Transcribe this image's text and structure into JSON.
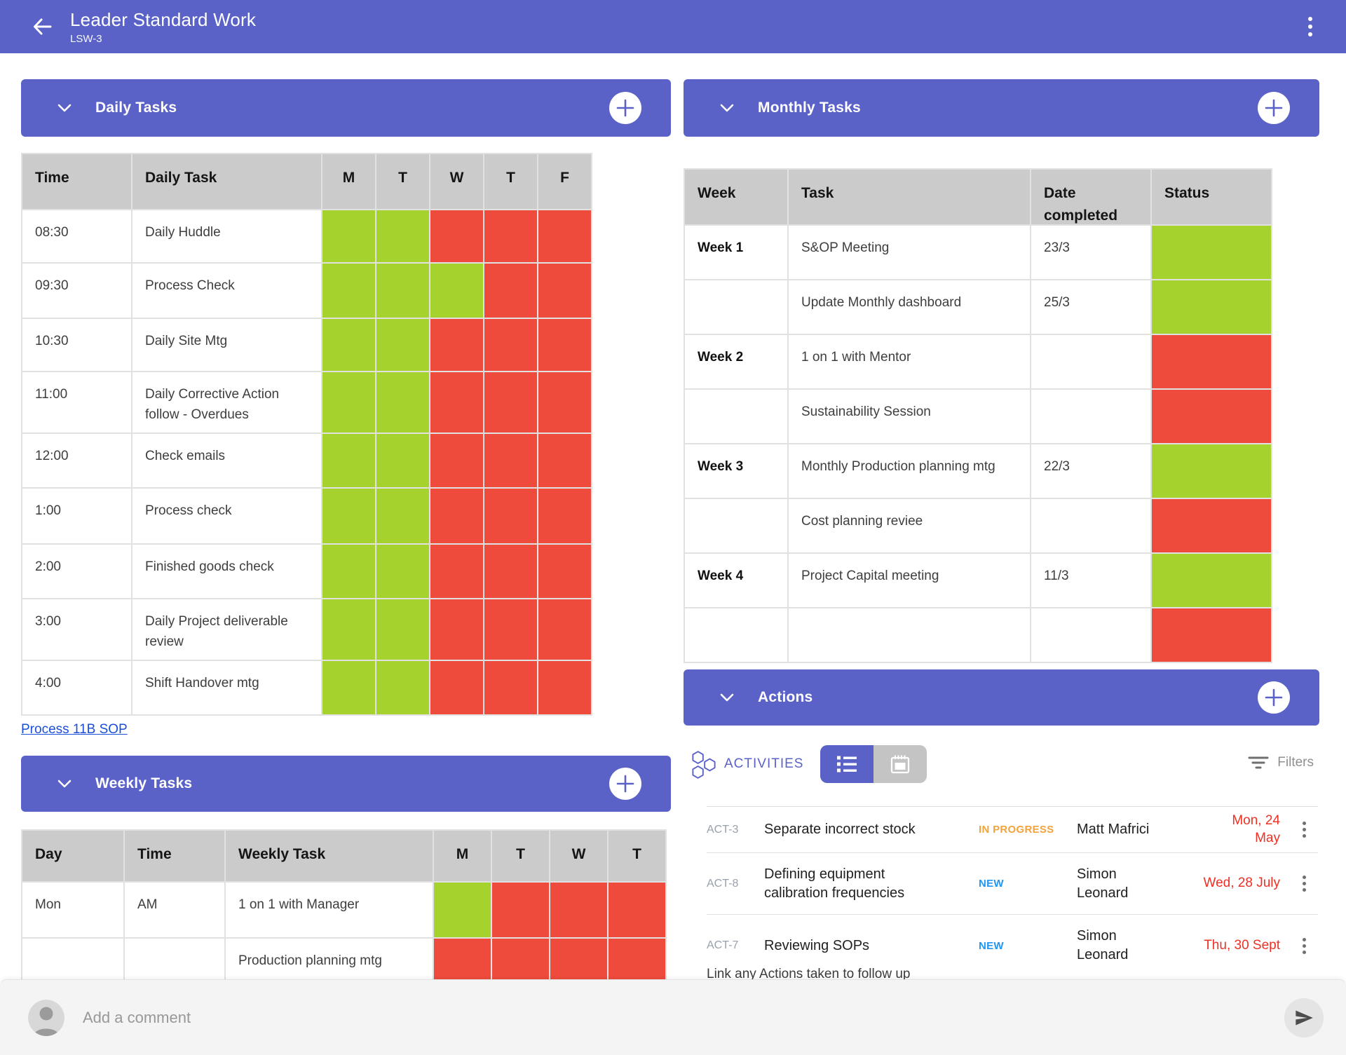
{
  "header": {
    "title": "Leader Standard Work",
    "subtitle": "LSW-3"
  },
  "sections": {
    "daily": "Daily Tasks",
    "weekly": "Weekly Tasks",
    "monthly": "Monthly Tasks",
    "actions": "Actions"
  },
  "colors": {
    "accent": "#5A62C8",
    "cell": {
      "g": "#A5D22D",
      "r": "#EE4B3C"
    },
    "status_in_progress": "#F2A33C",
    "status_new": "#2196F3",
    "due_date": "#ED3124",
    "link": "#1B4FD8"
  },
  "daily_table": {
    "headers": [
      "Time",
      "Daily Task",
      "M",
      "T",
      "W",
      "T",
      "F"
    ],
    "rows": [
      {
        "time": "08:30",
        "task": "Daily Huddle",
        "days": [
          "g",
          "g",
          "r",
          "r",
          "r"
        ]
      },
      {
        "time": "09:30",
        "task": "Process Check",
        "days": [
          "g",
          "g",
          "g",
          "r",
          "r"
        ]
      },
      {
        "time": "10:30",
        "task": "Daily Site Mtg",
        "days": [
          "g",
          "g",
          "r",
          "r",
          "r"
        ]
      },
      {
        "time": "11:00",
        "task": "Daily Corrective Action follow - Overdues",
        "days": [
          "g",
          "g",
          "r",
          "r",
          "r"
        ]
      },
      {
        "time": "12:00",
        "task": "Check emails",
        "days": [
          "g",
          "g",
          "r",
          "r",
          "r"
        ]
      },
      {
        "time": "1:00",
        "task": "Process check",
        "days": [
          "g",
          "g",
          "r",
          "r",
          "r"
        ]
      },
      {
        "time": "2:00",
        "task": "Finished goods check",
        "days": [
          "g",
          "g",
          "r",
          "r",
          "r"
        ]
      },
      {
        "time": "3:00",
        "task": "Daily Project deliverable review",
        "days": [
          "g",
          "g",
          "r",
          "r",
          "r"
        ]
      },
      {
        "time": "4:00",
        "task": "Shift Handover mtg",
        "days": [
          "g",
          "g",
          "r",
          "r",
          "r"
        ]
      }
    ]
  },
  "sop_link": "Process 11B SOP",
  "weekly_table": {
    "headers": [
      "Day",
      "Time",
      "Weekly Task",
      "M",
      "T",
      "W",
      "T"
    ],
    "rows": [
      {
        "day": "Mon",
        "time": "AM",
        "task": "1 on 1 with Manager",
        "days": [
          "g",
          "r",
          "r",
          "r"
        ]
      },
      {
        "day": "",
        "time": "",
        "task": "Production planning mtg",
        "days": [
          "r",
          "r",
          "r",
          "r"
        ]
      }
    ]
  },
  "monthly_table": {
    "headers": [
      "Week",
      "Task",
      "Date completed",
      "Status"
    ],
    "rows": [
      {
        "week": "Week 1",
        "task": "S&OP Meeting",
        "date": "23/3",
        "status": "g"
      },
      {
        "week": "",
        "task": "Update Monthly dashboard",
        "date": "25/3",
        "status": "g"
      },
      {
        "week": "Week 2",
        "task": "1 on 1 with Mentor",
        "date": "",
        "status": "r"
      },
      {
        "week": "",
        "task": "Sustainability Session",
        "date": "",
        "status": "r"
      },
      {
        "week": "Week 3",
        "task": "Monthly Production planning mtg",
        "date": "22/3",
        "status": "g"
      },
      {
        "week": "",
        "task": "Cost planning reviee",
        "date": "",
        "status": "r"
      },
      {
        "week": "Week 4",
        "task": "Project Capital meeting",
        "date": "11/3",
        "status": "g"
      },
      {
        "week": "",
        "task": "",
        "date": "",
        "status": "r"
      }
    ]
  },
  "activities": {
    "label": "ACTIVITIES",
    "filters_label": "Filters",
    "rows": [
      {
        "id": "ACT-3",
        "title": "Separate incorrect stock",
        "status": "IN PROGRESS",
        "status_color": "#F2A33C",
        "assignee": "Matt Mafrici",
        "due": "Mon, 24\nMay"
      },
      {
        "id": "ACT-8",
        "title": "Defining equipment\ncalibration frequencies",
        "status": "NEW",
        "status_color": "#2196F3",
        "assignee": "Simon\nLeonard",
        "due": "Wed, 28 July"
      },
      {
        "id": "ACT-7",
        "title": "Reviewing SOPs",
        "status": "NEW",
        "status_color": "#2196F3",
        "assignee": "Simon\nLeonard",
        "due": "Thu, 30 Sept"
      }
    ],
    "footnote": "Link any Actions taken to follow up"
  },
  "comment": {
    "placeholder": "Add a comment"
  }
}
